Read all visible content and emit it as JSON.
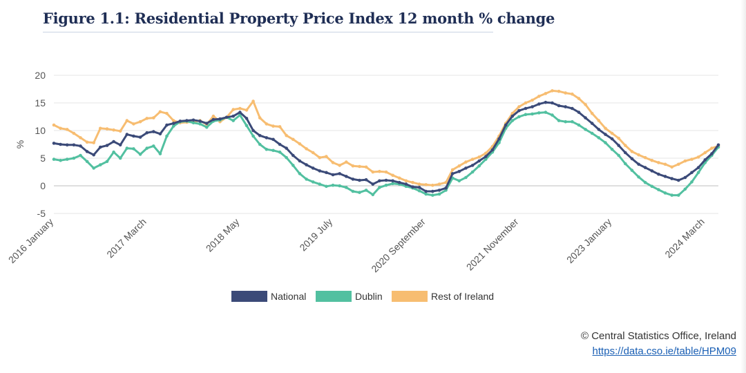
{
  "header": {
    "title": "Figure 1.1: Residential Property Price Index 12 month % change"
  },
  "footer": {
    "credit": "© Central Statistics Office, Ireland",
    "link": "https://data.cso.ie/table/HPM09"
  },
  "colors": {
    "national": "#3b4a78",
    "dublin": "#52c0a0",
    "rest": "#f7bd71",
    "grid": "#e6e6e6",
    "zero": "#bfbfbf",
    "axis_text": "#555555"
  },
  "chart_data": {
    "type": "line",
    "title": "Figure 1.1: Residential Property Price Index 12 month % change",
    "xlabel": "",
    "ylabel": "%",
    "ylim": [
      -5,
      20
    ],
    "yticks": [
      -5,
      0,
      5,
      10,
      15,
      20
    ],
    "grid": true,
    "legend": "bottom-center",
    "x_start": "2016 January",
    "x_end": "2024 March",
    "tick_labels": [
      {
        "index": 0,
        "label": "2016 January"
      },
      {
        "index": 14,
        "label": "2017 March"
      },
      {
        "index": 28,
        "label": "2018 May"
      },
      {
        "index": 42,
        "label": "2019 July"
      },
      {
        "index": 56,
        "label": "2020 September"
      },
      {
        "index": 70,
        "label": "2021 November"
      },
      {
        "index": 84,
        "label": "2023 January"
      },
      {
        "index": 98,
        "label": "2024 March"
      }
    ],
    "series": [
      {
        "name": "National",
        "key": "national",
        "values": [
          7.7,
          7.5,
          7.4,
          7.4,
          7.2,
          6.2,
          5.6,
          7.0,
          7.3,
          8.0,
          7.4,
          9.3,
          9.0,
          8.8,
          9.6,
          9.8,
          9.4,
          11.0,
          11.3,
          11.7,
          11.8,
          11.9,
          11.7,
          11.3,
          12.0,
          12.1,
          12.4,
          12.6,
          13.3,
          12.2,
          10.0,
          9.1,
          8.7,
          8.4,
          7.5,
          6.8,
          5.5,
          4.5,
          3.8,
          3.2,
          2.7,
          2.4,
          2.0,
          2.2,
          1.7,
          1.2,
          1.0,
          1.1,
          0.3,
          0.9,
          1.0,
          0.9,
          0.6,
          0.3,
          -0.2,
          -0.3,
          -1.0,
          -1.0,
          -0.8,
          -0.4,
          2.2,
          2.6,
          3.2,
          3.7,
          4.5,
          5.3,
          6.5,
          8.5,
          11.0,
          12.6,
          13.6,
          14.0,
          14.3,
          14.8,
          15.1,
          15.0,
          14.5,
          14.3,
          14.0,
          13.3,
          12.3,
          11.3,
          10.2,
          9.3,
          8.5,
          7.3,
          6.0,
          4.9,
          3.9,
          3.3,
          2.7,
          2.1,
          1.7,
          1.3,
          1.0,
          1.5,
          2.4,
          3.3,
          4.7,
          5.8,
          7.4
        ]
      },
      {
        "name": "Dublin",
        "key": "dublin",
        "values": [
          4.8,
          4.6,
          4.8,
          5.0,
          5.5,
          4.4,
          3.2,
          3.8,
          4.4,
          6.1,
          5.0,
          6.8,
          6.7,
          5.7,
          6.8,
          7.2,
          5.8,
          9.0,
          10.8,
          11.6,
          11.7,
          11.4,
          11.2,
          10.6,
          11.7,
          11.9,
          12.4,
          11.8,
          12.8,
          10.9,
          9.0,
          7.5,
          6.6,
          6.4,
          6.1,
          5.1,
          3.7,
          2.2,
          1.2,
          0.7,
          0.3,
          -0.1,
          0.1,
          0.0,
          -0.3,
          -1.0,
          -1.2,
          -0.8,
          -1.6,
          -0.3,
          0.1,
          0.4,
          0.3,
          -0.1,
          -0.4,
          -0.9,
          -1.5,
          -1.7,
          -1.5,
          -0.8,
          1.4,
          0.9,
          1.5,
          2.5,
          3.6,
          4.8,
          6.1,
          7.8,
          10.4,
          11.8,
          12.5,
          12.9,
          13.0,
          13.2,
          13.3,
          12.8,
          11.8,
          11.6,
          11.6,
          11.0,
          10.2,
          9.5,
          8.7,
          7.8,
          6.6,
          5.5,
          4.0,
          2.8,
          1.6,
          0.6,
          -0.1,
          -0.7,
          -1.3,
          -1.7,
          -1.7,
          -0.6,
          0.7,
          2.4,
          4.2,
          5.5,
          7.0
        ]
      },
      {
        "name": "Rest of Ireland",
        "key": "rest",
        "values": [
          11.0,
          10.4,
          10.2,
          9.5,
          8.7,
          7.9,
          7.8,
          10.4,
          10.3,
          10.1,
          9.9,
          11.8,
          11.2,
          11.6,
          12.2,
          12.3,
          13.4,
          13.1,
          11.8,
          11.4,
          11.5,
          11.6,
          11.8,
          11.1,
          12.6,
          11.6,
          12.4,
          13.8,
          14.0,
          13.7,
          15.3,
          12.3,
          11.2,
          10.8,
          10.7,
          9.1,
          8.4,
          7.6,
          6.7,
          6.0,
          5.1,
          5.3,
          4.2,
          3.7,
          4.3,
          3.6,
          3.5,
          3.4,
          2.5,
          2.6,
          2.5,
          1.9,
          1.4,
          0.9,
          0.6,
          0.3,
          0.2,
          0.1,
          0.3,
          0.6,
          2.9,
          3.6,
          4.3,
          4.8,
          5.2,
          5.9,
          7.1,
          9.0,
          11.3,
          13.1,
          14.3,
          15.0,
          15.5,
          16.2,
          16.7,
          17.2,
          17.1,
          16.8,
          16.6,
          15.8,
          14.7,
          13.1,
          11.8,
          10.4,
          9.5,
          8.6,
          7.3,
          6.2,
          5.6,
          5.1,
          4.6,
          4.2,
          3.9,
          3.4,
          3.9,
          4.5,
          4.8,
          5.2,
          6.0,
          6.8,
          7.2
        ]
      }
    ]
  }
}
